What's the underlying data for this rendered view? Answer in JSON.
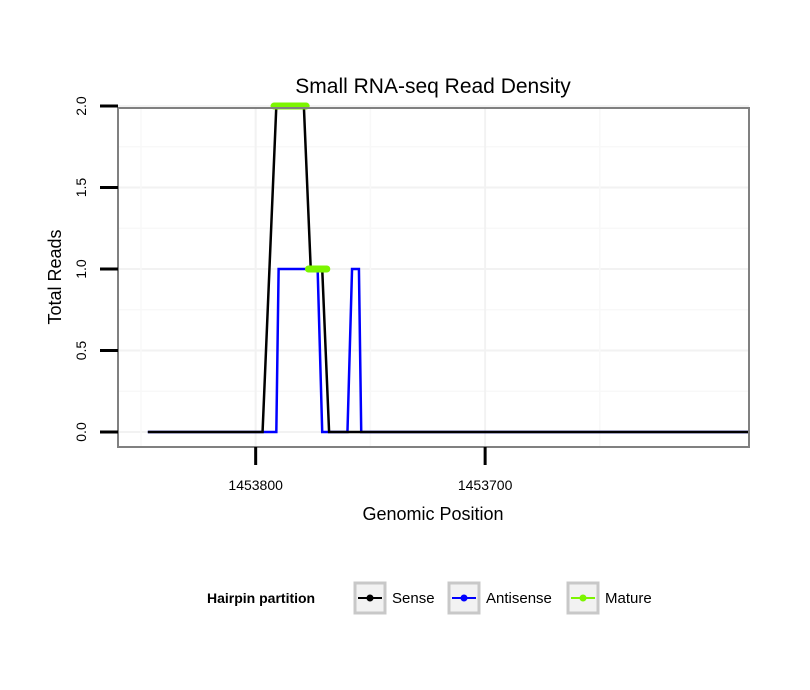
{
  "chart_data": {
    "type": "line",
    "title": "Small RNA-seq Read Density",
    "xlabel": "Genomic Position",
    "ylabel": "Total Reads",
    "x_reversed": true,
    "xlim": [
      1453860,
      1453585
    ],
    "ylim": [
      0,
      2.08
    ],
    "xticks": [
      1453800,
      1453700
    ],
    "xtick_labels": [
      "1453800",
      "1453700"
    ],
    "yticks": [
      0.0,
      0.5,
      1.0,
      1.5,
      2.0
    ],
    "ytick_labels": [
      "0.0",
      "0.5",
      "1.0",
      "1.5",
      "2.0"
    ],
    "grid": true,
    "legend": {
      "title": "Hairpin partition",
      "position": "bottom",
      "entries": [
        "Sense",
        "Antisense",
        "Mature"
      ]
    },
    "series": [
      {
        "name": "Sense",
        "color": "#000000",
        "x": [
          1453847,
          1453797,
          1453794,
          1453791,
          1453779,
          1453776,
          1453771,
          1453768,
          1453585
        ],
        "y": [
          0,
          0,
          1,
          2,
          2,
          1,
          1,
          0,
          0
        ]
      },
      {
        "name": "Antisense",
        "color": "#0000ff",
        "x": [
          1453847,
          1453791,
          1453790,
          1453773,
          1453771,
          1453760,
          1453758,
          1453755,
          1453754,
          1453585
        ],
        "y": [
          0,
          0,
          1,
          1,
          0,
          0,
          1,
          1,
          0,
          0
        ]
      },
      {
        "name": "Mature",
        "color": "#7cf500",
        "segments": [
          {
            "x": [
              1453792,
              1453778
            ],
            "y": [
              2,
              2
            ]
          },
          {
            "x": [
              1453777,
              1453769
            ],
            "y": [
              1,
              1
            ]
          }
        ]
      }
    ]
  }
}
